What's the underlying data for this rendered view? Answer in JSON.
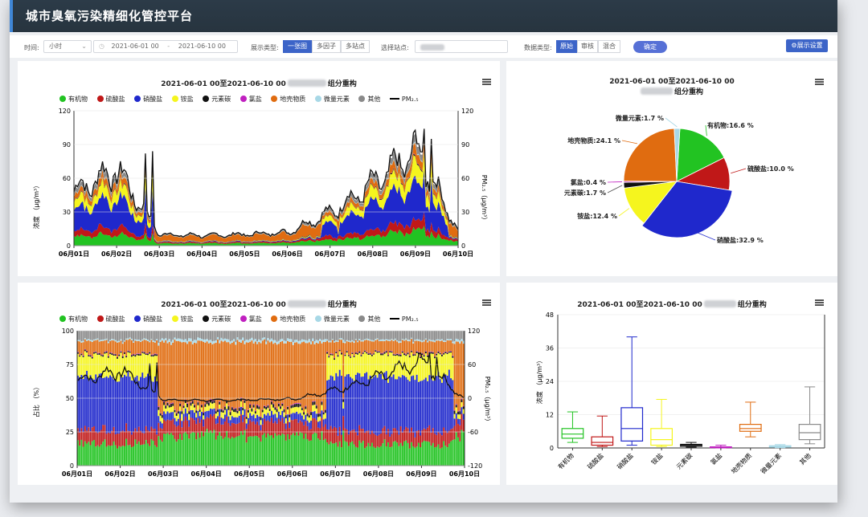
{
  "app_title": "城市臭氧污染精细化管控平台",
  "toolbar": {
    "time_label": "时间:",
    "interval_value": "小时",
    "start_time": "2021-06-01 00",
    "end_time": "2021-06-10 00",
    "time_sep": "-",
    "display_label": "展示类型:",
    "display_options": [
      "一张图",
      "多因子",
      "多站点"
    ],
    "station_label": "选择站点:",
    "data_label": "数据类型:",
    "data_options": [
      "原始",
      "审核",
      "混合"
    ],
    "confirm_label": "确定",
    "settings_label": "⚙展示设置"
  },
  "colors": {
    "有机物": "#22c322",
    "硫酸盐": "#c01818",
    "硝酸盐": "#1f28cc",
    "铵盐": "#f5f51e",
    "元素碳": "#111111",
    "氯盐": "#c020c0",
    "地壳物质": "#e06c10",
    "微量元素": "#a8d8e6",
    "其他": "#8a8a8a"
  },
  "legend": [
    "有机物",
    "硫酸盐",
    "硝酸盐",
    "铵盐",
    "元素碳",
    "氯盐",
    "地壳物质",
    "微量元素",
    "其他"
  ],
  "pm_label": "PM₂.₅",
  "panels": {
    "conc": {
      "title": "2021-06-01 00至2021-06-10 00",
      "title_tail": "组分重构",
      "ylabel": "浓度 （μg/m³）",
      "y2label": "PM₂.₅（μg/m³）",
      "yticks": [
        "120",
        "90",
        "60",
        "30",
        "0"
      ],
      "xticks": [
        "06月01日",
        "06月02日",
        "06月03日",
        "06月04日",
        "06月05日",
        "06月06日",
        "06月07日",
        "06月08日",
        "06月09日",
        "06月10日"
      ]
    },
    "pie": {
      "title_line1": "2021-06-01 00至2021-06-10 00",
      "title_line2": "组分重构"
    },
    "pct": {
      "title": "2021-06-01 00至2021-06-10 00",
      "title_tail": "组分重构",
      "ylabel": "占比 （%）",
      "y2label": "PM₂.₅（μg/m³）",
      "yticks": [
        "100",
        "75",
        "50",
        "25",
        "0"
      ],
      "y2ticks": [
        "120",
        "60",
        "0",
        "-60",
        "-120"
      ],
      "xticks": [
        "06月01日",
        "06月02日",
        "06月03日",
        "06月04日",
        "06月05日",
        "06月06日",
        "06月07日",
        "06月08日",
        "06月09日",
        "06月10日"
      ]
    },
    "box": {
      "title": "2021-06-01 00至2021-06-10 00",
      "title_tail": "组分重构",
      "ylabel": "浓度 （μg/m³）",
      "yticks": [
        "48",
        "36",
        "24",
        "12",
        "0"
      ]
    }
  },
  "chart_data": [
    {
      "type": "area",
      "categories": [
        "06月01日",
        "06月02日",
        "06月03日",
        "06月04日",
        "06月05日",
        "06月06日",
        "06月07日",
        "06月08日",
        "06月09日",
        "06月10日"
      ],
      "ylim": [
        0,
        120
      ],
      "y2lim": [
        0,
        120
      ],
      "pm25_daily": [
        48,
        68,
        10,
        9,
        10,
        12,
        30,
        55,
        85,
        10
      ],
      "ylabel": "浓度 （μg/m³）",
      "y2label": "PM₂.₅（μg/m³）"
    },
    {
      "type": "pie",
      "slices": [
        {
          "label": "有机物",
          "value": 16.6,
          "text": "有机物:16.6 %"
        },
        {
          "label": "硫酸盐",
          "value": 10.0,
          "text": "硫酸盐:10.0 %"
        },
        {
          "label": "硝酸盐",
          "value": 32.9,
          "text": "硝酸盐:32.9 %"
        },
        {
          "label": "铵盐",
          "value": 12.4,
          "text": "铵盐:12.4 %"
        },
        {
          "label": "元素碳",
          "value": 1.7,
          "text": "元素碳:1.7 %"
        },
        {
          "label": "氯盐",
          "value": 0.4,
          "text": "氯盐:0.4 %"
        },
        {
          "label": "地壳物质",
          "value": 24.1,
          "text": "地壳物质:24.1 %"
        },
        {
          "label": "微量元素",
          "value": 1.7,
          "text": "微量元素:1.7 %"
        }
      ]
    },
    {
      "type": "bar",
      "categories": [
        "06月01日",
        "06月02日",
        "06月03日",
        "06月04日",
        "06月05日",
        "06月06日",
        "06月07日",
        "06月08日",
        "06月09日",
        "06月10日"
      ],
      "ylim": [
        0,
        100
      ],
      "y2lim": [
        -120,
        120
      ],
      "ylabel": "占比 （%）",
      "y2label": "PM₂.₅（μg/m³）"
    },
    {
      "type": "box",
      "categories": [
        "有机物",
        "硫酸盐",
        "硝酸盐",
        "铵盐",
        "元素碳",
        "氯盐",
        "地壳物质",
        "微量元素",
        "其他"
      ],
      "ylim": [
        0,
        48
      ],
      "ylabel": "浓度 （μg/m³）",
      "boxes": [
        {
          "min": 2,
          "q1": 3.5,
          "median": 5,
          "q3": 7,
          "max": 13
        },
        {
          "min": 0.5,
          "q1": 1,
          "median": 2,
          "q3": 4,
          "max": 11.5
        },
        {
          "min": 1,
          "q1": 2.5,
          "median": 7,
          "q3": 14.5,
          "max": 40
        },
        {
          "min": 0.5,
          "q1": 1,
          "median": 3,
          "q3": 7,
          "max": 17.5
        },
        {
          "min": 0.3,
          "q1": 0.6,
          "median": 1,
          "q3": 1.3,
          "max": 2
        },
        {
          "min": 0,
          "q1": 0.1,
          "median": 0.2,
          "q3": 0.4,
          "max": 1
        },
        {
          "min": 4,
          "q1": 6,
          "median": 7,
          "q3": 8.5,
          "max": 16.5
        },
        {
          "min": 0.1,
          "q1": 0.3,
          "median": 0.5,
          "q3": 0.8,
          "max": 1.2
        },
        {
          "min": 1.5,
          "q1": 3,
          "median": 5.5,
          "q3": 8.5,
          "max": 22
        }
      ]
    }
  ]
}
